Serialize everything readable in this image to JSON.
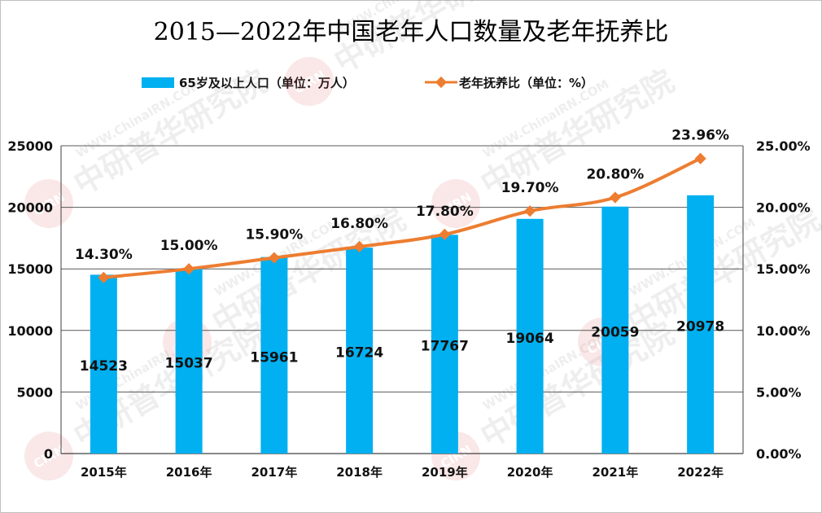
{
  "chart_data": {
    "type": "bar+line",
    "title": "2015—2022年中国老年人口数量及老年抚养比",
    "categories": [
      "2015年",
      "2016年",
      "2017年",
      "2018年",
      "2019年",
      "2020年",
      "2021年",
      "2022年"
    ],
    "series": [
      {
        "name": "65岁及以上人口（单位：万人）",
        "type": "bar",
        "axis": "left",
        "color": "#00b0f0",
        "values": [
          14523,
          15037,
          15961,
          16724,
          17767,
          19064,
          20059,
          20978
        ],
        "labels": [
          "14523",
          "15037",
          "15961",
          "16724",
          "17767",
          "19064",
          "20059",
          "20978"
        ]
      },
      {
        "name": "老年抚养比（单位：%）",
        "type": "line",
        "axis": "right",
        "color": "#ed7d31",
        "values": [
          14.3,
          15.0,
          15.9,
          16.8,
          17.8,
          19.7,
          20.8,
          23.96
        ],
        "labels": [
          "14.30%",
          "15.00%",
          "15.90%",
          "16.80%",
          "17.80%",
          "19.70%",
          "20.80%",
          "23.96%"
        ]
      }
    ],
    "y_left": {
      "min": 0,
      "max": 25000,
      "ticks": [
        "0",
        "5000",
        "10000",
        "15000",
        "20000",
        "25000"
      ]
    },
    "y_right": {
      "min": 0,
      "max": 25,
      "ticks": [
        "0.00%",
        "5.00%",
        "10.00%",
        "15.00%",
        "20.00%",
        "25.00%"
      ]
    },
    "grid": true,
    "legend_position": "top"
  },
  "watermark": {
    "text_cn": "中研普华研究院",
    "text_en": "WWW.ChinaIRN.COM",
    "logo": "CIRN",
    "color": "#e05050"
  }
}
